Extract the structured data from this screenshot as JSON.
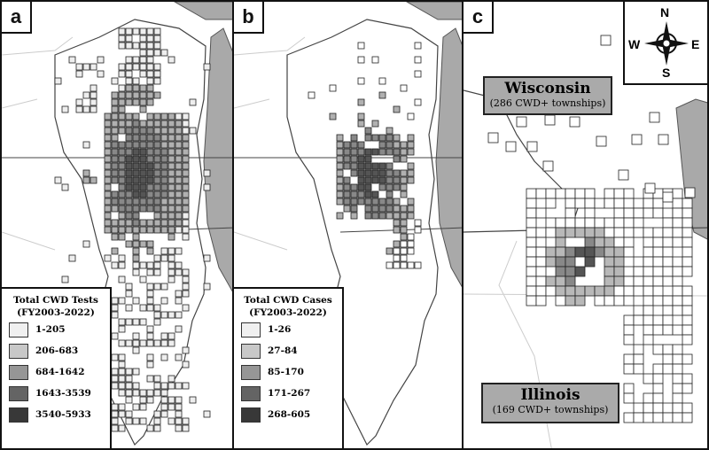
{
  "panels": [
    {
      "id": "a",
      "label": "a",
      "legend": {
        "title_line1": "Total CWD Tests",
        "title_line2": "(FY2003-2022)",
        "classes": [
          {
            "range": "1-205",
            "color": "#f0f0f0"
          },
          {
            "range": "206-683",
            "color": "#c8c8c8"
          },
          {
            "range": "684-1642",
            "color": "#969696"
          },
          {
            "range": "1643-3539",
            "color": "#646464"
          },
          {
            "range": "3540-5933",
            "color": "#383838"
          }
        ]
      }
    },
    {
      "id": "b",
      "label": "b",
      "legend": {
        "title_line1": "Total CWD Cases",
        "title_line2": "(FY2003-2022)",
        "classes": [
          {
            "range": "1-26",
            "color": "#f0f0f0"
          },
          {
            "range": "27-84",
            "color": "#c8c8c8"
          },
          {
            "range": "85-170",
            "color": "#969696"
          },
          {
            "range": "171-267",
            "color": "#646464"
          },
          {
            "range": "268-605",
            "color": "#383838"
          }
        ]
      }
    },
    {
      "id": "c",
      "label": "c",
      "states": [
        {
          "name": "Wisconsin",
          "caption": "(286 CWD+ townships)"
        },
        {
          "name": "Illinois",
          "caption": "(169 CWD+ townships)"
        }
      ]
    }
  ],
  "compass": {
    "n": "N",
    "s": "S",
    "e": "E",
    "w": "W"
  },
  "colors": {
    "water": "#a9a9a9",
    "cell_fill": "#ffffff",
    "cell_stroke": "#222222",
    "border": "#111111",
    "state_line": "#333333"
  }
}
